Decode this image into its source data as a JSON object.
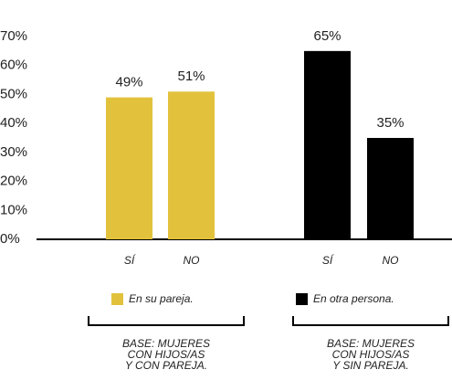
{
  "chart_data": {
    "type": "bar",
    "ylim": [
      0,
      70
    ],
    "yticks": [
      {
        "value": 0,
        "label": "0%"
      },
      {
        "value": 10,
        "label": "10%"
      },
      {
        "value": 20,
        "label": "20%"
      },
      {
        "value": 30,
        "label": "30%"
      },
      {
        "value": 40,
        "label": "40%"
      },
      {
        "value": 50,
        "label": "50%"
      },
      {
        "value": 60,
        "label": "60%"
      },
      {
        "value": 70,
        "label": "70%"
      }
    ],
    "series": [
      {
        "name": "En su pareja.",
        "color": "#e2c23d",
        "categories": [
          "SÍ",
          "NO"
        ],
        "values": [
          49,
          51
        ],
        "value_labels": [
          "49%",
          "51%"
        ],
        "base": [
          "BASE: MUJERES",
          "CON HIJOS/AS",
          "Y CON PAREJA."
        ]
      },
      {
        "name": "En otra persona.",
        "color": "#000000",
        "categories": [
          "SÍ",
          "NO"
        ],
        "values": [
          65,
          35
        ],
        "value_labels": [
          "65%",
          "35%"
        ],
        "base": [
          "BASE: MUJERES",
          "CON HIJOS/AS",
          "Y SIN PAREJA."
        ]
      }
    ]
  }
}
